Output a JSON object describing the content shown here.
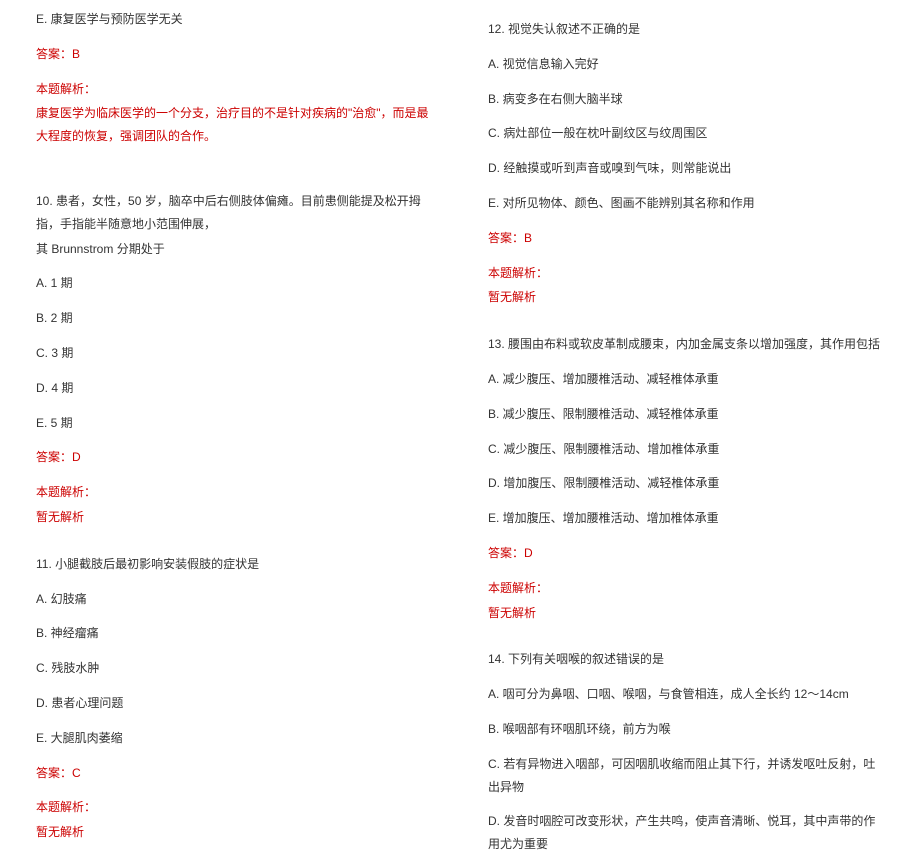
{
  "left": {
    "q9_e": "E. 康复医学与预防医学无关",
    "q9_ans": "答案：B",
    "q9_label": "本题解析：",
    "q9_expl": "康复医学为临床医学的一个分支，治疗目的不是针对疾病的\"治愈\"，而是最大程度的恢复，强调团队的合作。",
    "q10_stem1": "10. 患者，女性，50 岁，脑卒中后右侧肢体偏瘫。目前患侧能提及松开拇指，手指能半随意地小范围伸展，",
    "q10_stem2": "其 Brunnstrom 分期处于",
    "q10_a": "A. 1 期",
    "q10_b": "B. 2 期",
    "q10_c": "C. 3 期",
    "q10_d": "D. 4 期",
    "q10_e": "E. 5 期",
    "q10_ans": "答案：D",
    "q10_label": "本题解析：",
    "q10_expl": "暂无解析",
    "q11_stem": "11. 小腿截肢后最初影响安装假肢的症状是",
    "q11_a": "A. 幻肢痛",
    "q11_b": "B. 神经瘤痛",
    "q11_c": "C. 残肢水肿",
    "q11_d": "D. 患者心理问题",
    "q11_e": "E. 大腿肌肉萎缩",
    "q11_ans": "答案：C",
    "q11_label": "本题解析：",
    "q11_expl": "暂无解析"
  },
  "right": {
    "q12_stem": "12. 视觉失认叙述不正确的是",
    "q12_a": "A. 视觉信息输入完好",
    "q12_b": "B. 病变多在右侧大脑半球",
    "q12_c": "C. 病灶部位一般在枕叶副纹区与纹周围区",
    "q12_d": "D. 经触摸或听到声音或嗅到气味，则常能说出",
    "q12_e": "E. 对所见物体、颜色、图画不能辨别其名称和作用",
    "q12_ans": "答案：B",
    "q12_label": "本题解析：",
    "q12_expl": "暂无解析",
    "q13_stem": "13. 腰围由布料或软皮革制成腰束，内加金属支条以增加强度，其作用包括",
    "q13_a": "A. 减少腹压、增加腰椎活动、减轻椎体承重",
    "q13_b": "B. 减少腹压、限制腰椎活动、减轻椎体承重",
    "q13_c": "C. 减少腹压、限制腰椎活动、增加椎体承重",
    "q13_d": "D. 增加腹压、限制腰椎活动、减轻椎体承重",
    "q13_e": "E. 增加腹压、增加腰椎活动、增加椎体承重",
    "q13_ans": "答案：D",
    "q13_label": "本题解析：",
    "q13_expl": "暂无解析",
    "q14_stem": "14. 下列有关咽喉的叙述错误的是",
    "q14_a": "A. 咽可分为鼻咽、口咽、喉咽，与食管相连，成人全长约 12～14cm",
    "q14_b": "B. 喉咽部有环咽肌环绕，前方为喉",
    "q14_c": "C. 若有异物进入咽部，可因咽肌收缩而阻止其下行，并诱发呕吐反射，吐出异物",
    "q14_d": "D. 发音时咽腔可改变形状，产生共鸣，使声音清晰、悦耳，其中声带的作用尤为重要"
  }
}
